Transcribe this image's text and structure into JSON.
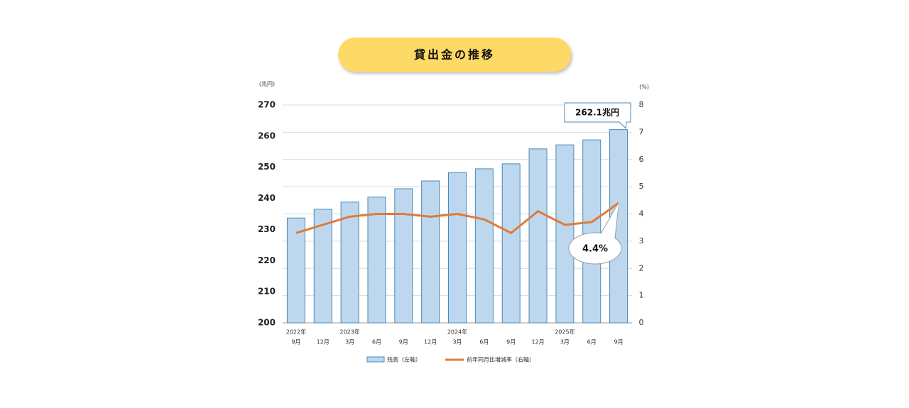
{
  "chart_data": {
    "type": "bar_line",
    "title": "貸出金の推移",
    "y_unit": "(兆円)",
    "y2_unit": "(%)",
    "categories": [
      "9月",
      "12月",
      "3月",
      "6月",
      "9月",
      "12月",
      "3月",
      "6月",
      "9月",
      "12月",
      "3月",
      "6月",
      "9月"
    ],
    "year_labels": [
      "2022年",
      null,
      "2023年",
      null,
      null,
      null,
      "2024年",
      null,
      null,
      null,
      "2025年",
      null,
      null
    ],
    "ylim": [
      200,
      270
    ],
    "yticks": [
      200,
      210,
      220,
      230,
      240,
      250,
      260,
      270
    ],
    "y2lim": [
      0,
      8
    ],
    "y2ticks": [
      0,
      1,
      2,
      3,
      4,
      5,
      6,
      7,
      8
    ],
    "grid": true,
    "series": [
      {
        "name": "残高（左軸）",
        "type": "bar",
        "color": "#bdd7ee",
        "values": [
          233.7,
          236.5,
          238.8,
          240.4,
          243.1,
          245.6,
          248.3,
          249.5,
          251.1,
          255.9,
          257.2,
          258.8,
          262.1
        ],
        "value_labels": [
          null,
          null,
          null,
          null,
          null,
          null,
          null,
          null,
          null,
          null,
          null,
          null,
          "262.1兆円"
        ]
      },
      {
        "name": "前年同月比増減率（右軸）",
        "type": "line",
        "axis": "y2",
        "color": "#e07b39",
        "values": [
          3.3,
          3.6,
          3.9,
          4.0,
          4.0,
          3.9,
          4.0,
          3.8,
          3.3,
          4.1,
          3.6,
          3.7,
          4.4
        ],
        "value_labels": [
          null,
          null,
          null,
          null,
          null,
          null,
          null,
          null,
          null,
          null,
          null,
          null,
          "4.4%"
        ]
      }
    ]
  }
}
